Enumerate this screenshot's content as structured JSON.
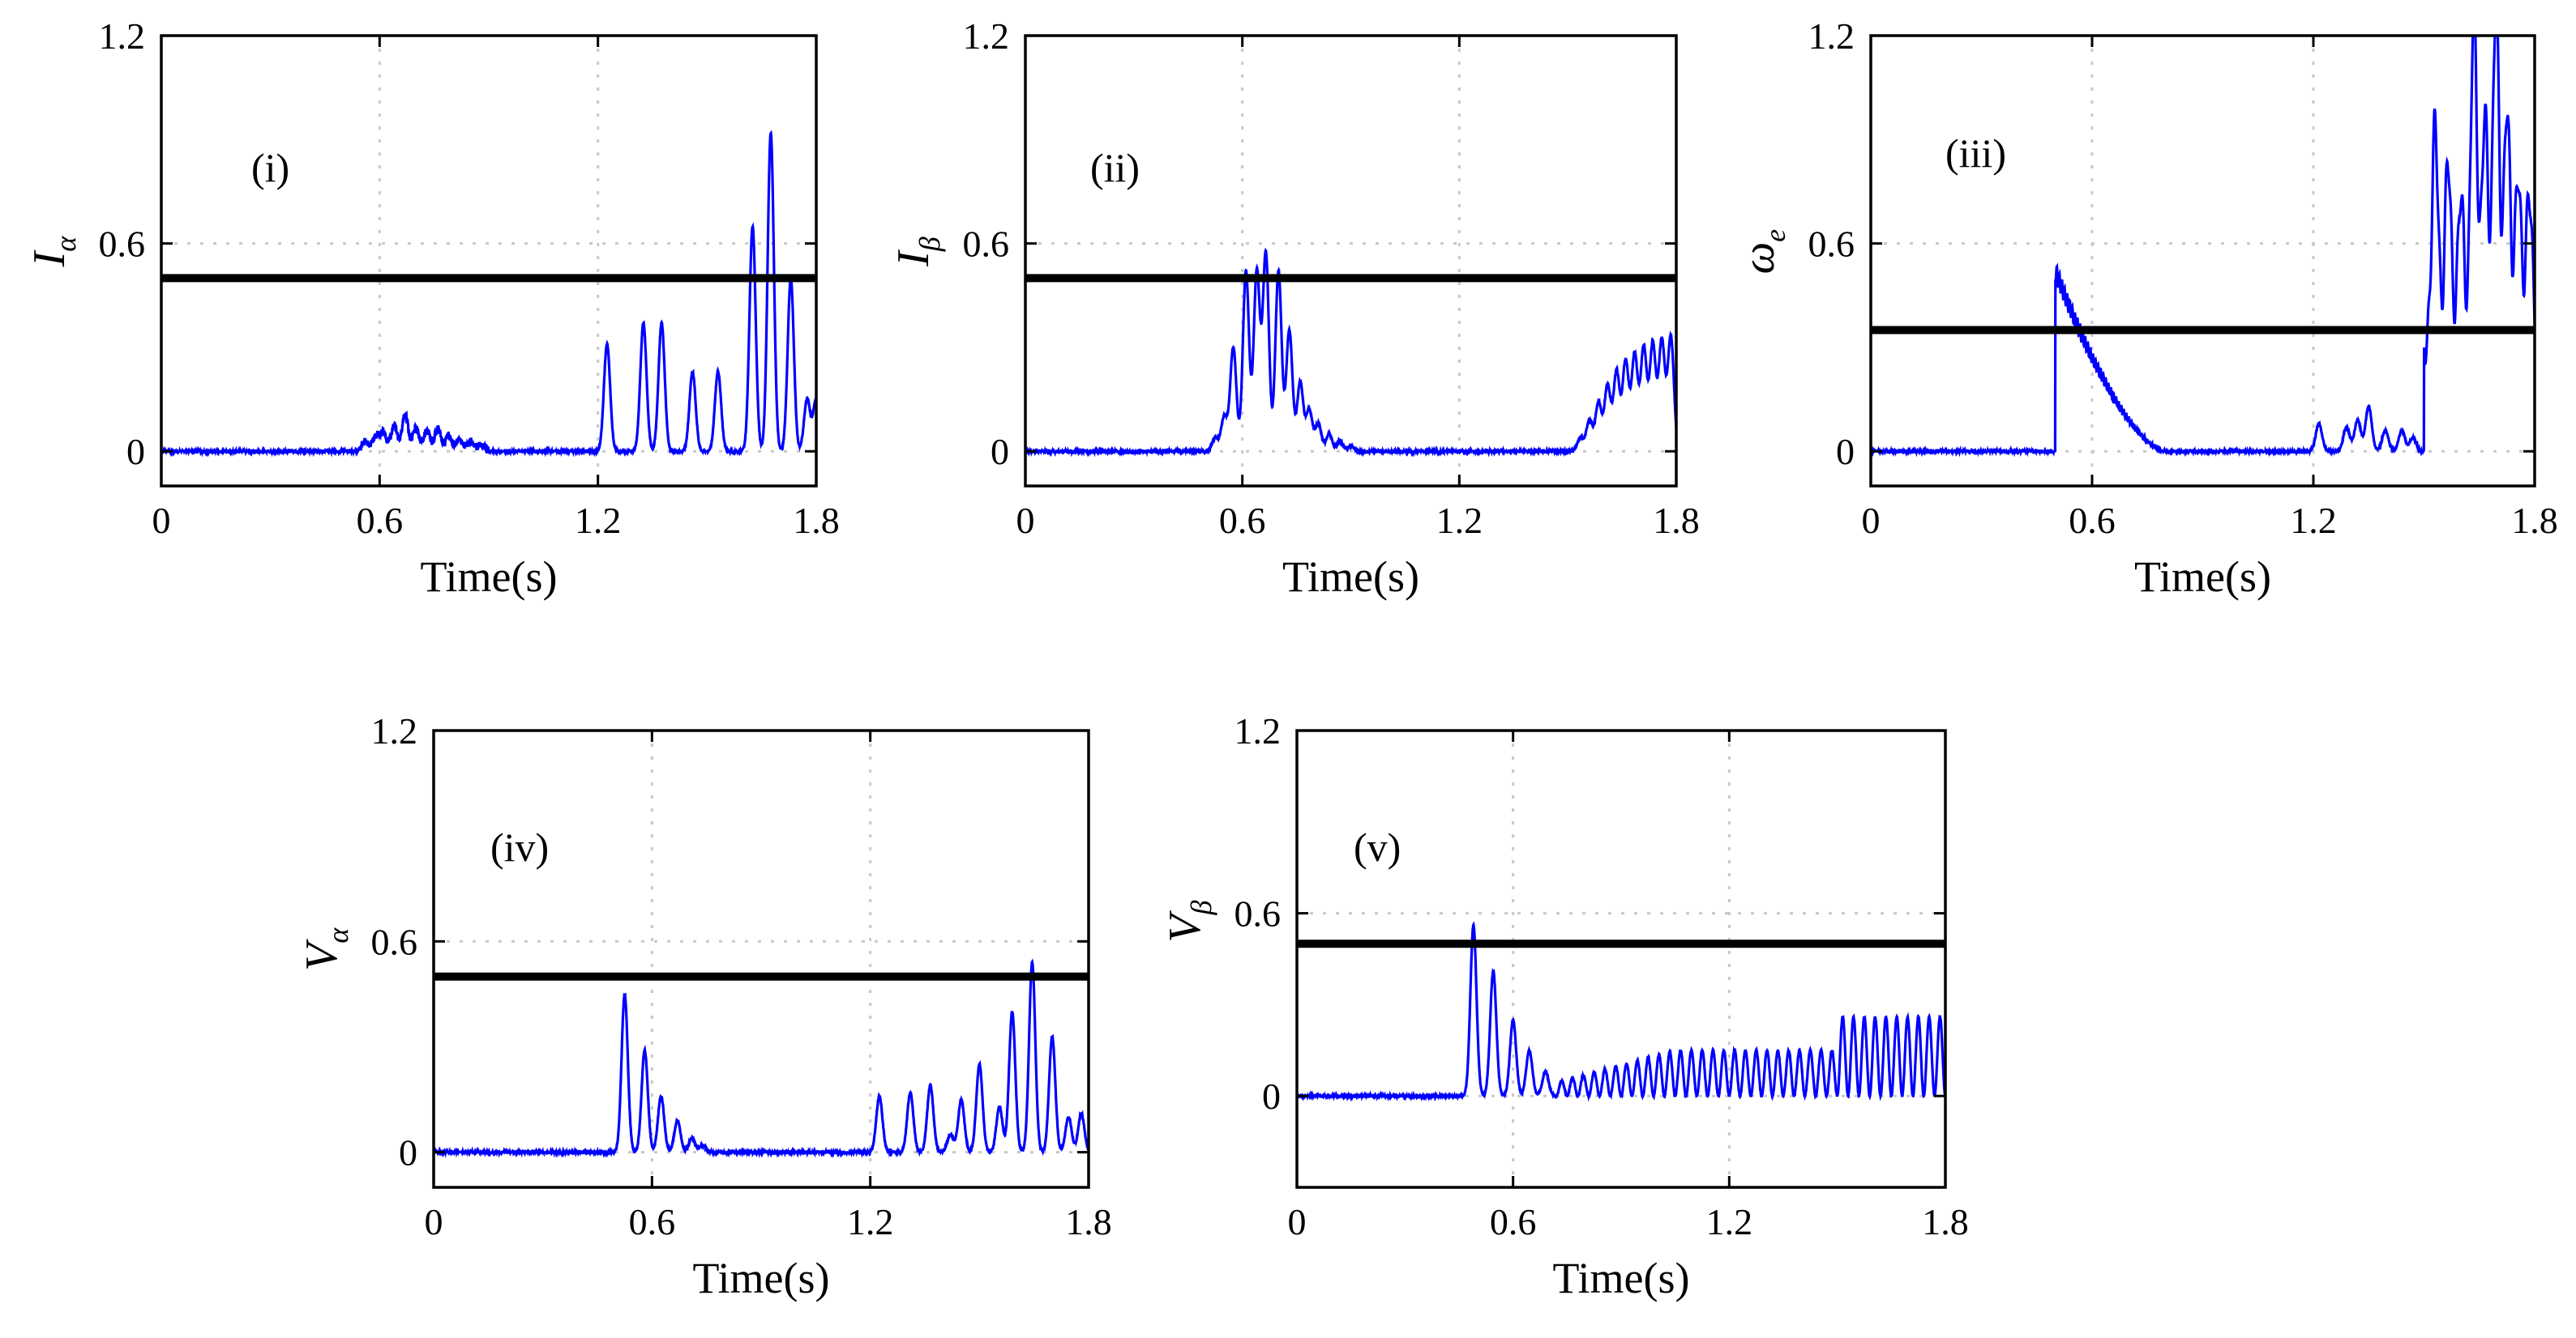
{
  "chart_data": [
    {
      "type": "line",
      "id": "i",
      "annotation": "(i)",
      "ylabel_main": "I",
      "ylabel_sub": "α",
      "xlabel": "Time(s)",
      "xlim": [
        0,
        1.8
      ],
      "ylim": [
        -0.1,
        1.2
      ],
      "xticks": [
        0,
        0.6,
        1.2,
        1.8
      ],
      "xtick_labels": [
        "0",
        "0.6",
        "1.2",
        "1.8"
      ],
      "yticks": [
        0,
        0.6,
        1.2
      ],
      "ytick_labels": [
        "0",
        "0.6",
        "1.2"
      ],
      "grid": true,
      "threshold": 0.5,
      "series_color": "#0000ff",
      "threshold_color": "#000000",
      "bursts": [
        {
          "t": 0.56,
          "a": 0.025
        },
        {
          "t": 0.59,
          "a": 0.04
        },
        {
          "t": 0.61,
          "a": 0.05
        },
        {
          "t": 0.64,
          "a": 0.07
        },
        {
          "t": 0.67,
          "a": 0.1
        },
        {
          "t": 0.7,
          "a": 0.065
        },
        {
          "t": 0.73,
          "a": 0.055
        },
        {
          "t": 0.76,
          "a": 0.06
        },
        {
          "t": 0.79,
          "a": 0.04
        },
        {
          "t": 0.82,
          "a": 0.03
        },
        {
          "t": 0.85,
          "a": 0.025
        },
        {
          "t": 0.88,
          "a": 0.015
        },
        {
          "t": 1.225,
          "a": 0.31
        },
        {
          "t": 1.325,
          "a": 0.37
        },
        {
          "t": 1.375,
          "a": 0.37
        },
        {
          "t": 1.46,
          "a": 0.23
        },
        {
          "t": 1.53,
          "a": 0.23
        },
        {
          "t": 1.625,
          "a": 0.65
        },
        {
          "t": 1.675,
          "a": 0.92
        },
        {
          "t": 1.73,
          "a": 0.5
        },
        {
          "t": 1.775,
          "a": 0.15
        },
        {
          "t": 1.8,
          "a": 0.15
        }
      ]
    },
    {
      "type": "line",
      "id": "ii",
      "annotation": "(ii)",
      "ylabel_main": "I",
      "ylabel_sub": "β",
      "xlabel": "Time(s)",
      "xlim": [
        0,
        1.8
      ],
      "ylim": [
        -0.1,
        1.2
      ],
      "xticks": [
        0,
        0.6,
        1.2,
        1.8
      ],
      "xtick_labels": [
        "0",
        "0.6",
        "1.2",
        "1.8"
      ],
      "yticks": [
        0,
        0.6,
        1.2
      ],
      "ytick_labels": [
        "0",
        "0.6",
        "1.2"
      ],
      "grid": true,
      "threshold": 0.5,
      "series_color": "#0000ff",
      "threshold_color": "#000000",
      "bursts": [
        {
          "t": 0.525,
          "a": 0.04
        },
        {
          "t": 0.55,
          "a": 0.1
        },
        {
          "t": 0.575,
          "a": 0.3
        },
        {
          "t": 0.61,
          "a": 0.52
        },
        {
          "t": 0.64,
          "a": 0.52
        },
        {
          "t": 0.665,
          "a": 0.57
        },
        {
          "t": 0.7,
          "a": 0.52
        },
        {
          "t": 0.73,
          "a": 0.35
        },
        {
          "t": 0.76,
          "a": 0.2
        },
        {
          "t": 0.785,
          "a": 0.12
        },
        {
          "t": 0.81,
          "a": 0.08
        },
        {
          "t": 0.84,
          "a": 0.05
        },
        {
          "t": 0.87,
          "a": 0.03
        },
        {
          "t": 0.9,
          "a": 0.015
        },
        {
          "t": 1.535,
          "a": 0.04
        },
        {
          "t": 1.56,
          "a": 0.09
        },
        {
          "t": 1.585,
          "a": 0.14
        },
        {
          "t": 1.61,
          "a": 0.19
        },
        {
          "t": 1.635,
          "a": 0.23
        },
        {
          "t": 1.66,
          "a": 0.26
        },
        {
          "t": 1.685,
          "a": 0.28
        },
        {
          "t": 1.71,
          "a": 0.3
        },
        {
          "t": 1.735,
          "a": 0.31
        },
        {
          "t": 1.76,
          "a": 0.32
        },
        {
          "t": 1.785,
          "a": 0.33
        }
      ]
    },
    {
      "type": "line",
      "id": "iii",
      "annotation": "(iii)",
      "ylabel_main": "ω",
      "ylabel_sub": "e",
      "xlabel": "Time(s)",
      "xlim": [
        0,
        1.8
      ],
      "ylim": [
        -0.1,
        1.2
      ],
      "xticks": [
        0,
        0.6,
        1.2,
        1.8
      ],
      "xtick_labels": [
        "0",
        "0.6",
        "1.2",
        "1.8"
      ],
      "yticks": [
        0,
        0.6,
        1.2
      ],
      "ytick_labels": [
        "0",
        "0.6",
        "1.2"
      ],
      "grid": true,
      "threshold": 0.35,
      "series_color": "#0000ff",
      "threshold_color": "#000000",
      "step_start": 0.5,
      "step_peak": 0.52,
      "step_end": 0.8,
      "bursts": [
        {
          "t": 1.215,
          "a": 0.08
        },
        {
          "t": 1.29,
          "a": 0.07
        },
        {
          "t": 1.32,
          "a": 0.09
        },
        {
          "t": 1.35,
          "a": 0.13
        },
        {
          "t": 1.395,
          "a": 0.06
        },
        {
          "t": 1.44,
          "a": 0.06
        },
        {
          "t": 1.47,
          "a": 0.04
        },
        {
          "t": 1.53,
          "a": 0.65
        },
        {
          "t": 1.565,
          "a": 0.55
        },
        {
          "t": 1.6,
          "a": 0.45
        },
        {
          "t": 1.635,
          "a": 0.98
        },
        {
          "t": 1.665,
          "a": 0.68
        },
        {
          "t": 1.695,
          "a": 1.0
        },
        {
          "t": 1.725,
          "a": 0.7
        },
        {
          "t": 1.755,
          "a": 0.5
        },
        {
          "t": 1.785,
          "a": 0.45
        }
      ],
      "baseline_after": 1.5,
      "baseline_value": 0.3
    },
    {
      "type": "line",
      "id": "iv",
      "annotation": "(iv)",
      "ylabel_main": "V",
      "ylabel_sub": "α",
      "xlabel": "Time(s)",
      "xlim": [
        0,
        1.8
      ],
      "ylim": [
        -0.1,
        1.2
      ],
      "xticks": [
        0,
        0.6,
        1.2,
        1.8
      ],
      "xtick_labels": [
        "0",
        "0.6",
        "1.2",
        "1.8"
      ],
      "yticks": [
        0,
        0.6,
        1.2
      ],
      "ytick_labels": [
        "0",
        "0.6",
        "1.2"
      ],
      "grid": true,
      "threshold": 0.5,
      "series_color": "#0000ff",
      "threshold_color": "#000000",
      "bursts": [
        {
          "t": 0.525,
          "a": 0.45
        },
        {
          "t": 0.58,
          "a": 0.29
        },
        {
          "t": 0.625,
          "a": 0.16
        },
        {
          "t": 0.67,
          "a": 0.09
        },
        {
          "t": 0.71,
          "a": 0.04
        },
        {
          "t": 0.74,
          "a": 0.02
        },
        {
          "t": 1.225,
          "a": 0.16
        },
        {
          "t": 1.31,
          "a": 0.17
        },
        {
          "t": 1.365,
          "a": 0.19
        },
        {
          "t": 1.42,
          "a": 0.05
        },
        {
          "t": 1.45,
          "a": 0.15
        },
        {
          "t": 1.5,
          "a": 0.25
        },
        {
          "t": 1.555,
          "a": 0.13
        },
        {
          "t": 1.59,
          "a": 0.4
        },
        {
          "t": 1.645,
          "a": 0.54
        },
        {
          "t": 1.7,
          "a": 0.33
        },
        {
          "t": 1.745,
          "a": 0.1
        },
        {
          "t": 1.78,
          "a": 0.11
        }
      ]
    },
    {
      "type": "line",
      "id": "v",
      "annotation": "(v)",
      "ylabel_main": "V",
      "ylabel_sub": "β",
      "xlabel": "Time(s)",
      "xlim": [
        0,
        1.8
      ],
      "ylim": [
        -0.3,
        1.2
      ],
      "xticks": [
        0,
        0.6,
        1.2,
        1.8
      ],
      "xtick_labels": [
        "0",
        "0.6",
        "1.2",
        "1.8"
      ],
      "yticks": [
        0,
        0.6,
        1.2
      ],
      "ytick_labels": [
        "0",
        "0.6",
        "1.2"
      ],
      "grid": true,
      "threshold": 0.5,
      "series_color": "#0000ff",
      "threshold_color": "#000000",
      "bursts": [
        {
          "t": 0.49,
          "a": 0.56
        },
        {
          "t": 0.545,
          "a": 0.41
        },
        {
          "t": 0.6,
          "a": 0.25
        },
        {
          "t": 0.645,
          "a": 0.15
        },
        {
          "t": 0.69,
          "a": 0.08
        }
      ],
      "osc_start": 0.72,
      "osc_ramp_end": 1.05,
      "osc_amp1": 0.15,
      "osc_switch": 1.5,
      "osc_amp2": 0.26,
      "osc_period": 0.03
    }
  ]
}
